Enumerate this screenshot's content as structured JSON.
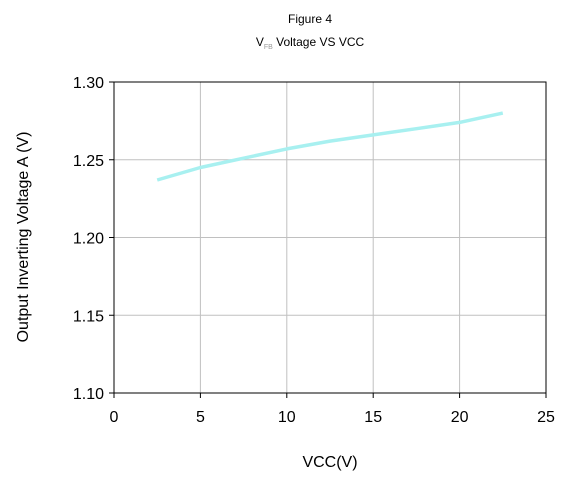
{
  "chart_data": {
    "type": "line",
    "figure_label": "Figure 4",
    "title_main": "V",
    "title_subscript": "FB",
    "title_rest": " Voltage VS VCC",
    "xlabel": "VCC(V)",
    "ylabel": "Output Inverting Voltage A (V)",
    "xlim": [
      0,
      25
    ],
    "ylim": [
      1.1,
      1.3
    ],
    "x_ticks": [
      "0",
      "5",
      "10",
      "15",
      "20",
      "25"
    ],
    "y_ticks": [
      "1.10",
      "1.15",
      "1.20",
      "1.25",
      "1.30"
    ],
    "grid": true,
    "series": [
      {
        "color": "#a8f0f0",
        "x": [
          2.5,
          5,
          7.5,
          10,
          12.5,
          15,
          17.5,
          20,
          22.5
        ],
        "y": [
          1.237,
          1.245,
          1.251,
          1.257,
          1.262,
          1.266,
          1.27,
          1.274,
          1.28
        ]
      }
    ]
  }
}
